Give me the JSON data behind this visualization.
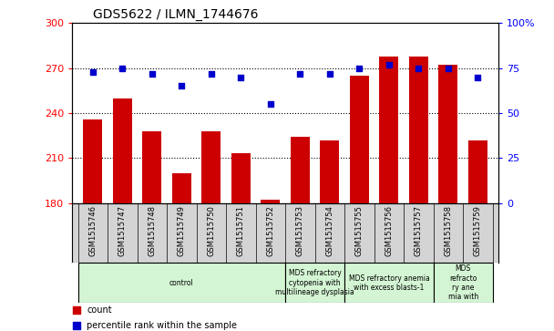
{
  "title": "GDS5622 / ILMN_1744676",
  "samples": [
    "GSM1515746",
    "GSM1515747",
    "GSM1515748",
    "GSM1515749",
    "GSM1515750",
    "GSM1515751",
    "GSM1515752",
    "GSM1515753",
    "GSM1515754",
    "GSM1515755",
    "GSM1515756",
    "GSM1515757",
    "GSM1515758",
    "GSM1515759"
  ],
  "counts": [
    236,
    250,
    228,
    200,
    228,
    213,
    182,
    224,
    222,
    265,
    278,
    278,
    272,
    222
  ],
  "percentiles": [
    73,
    75,
    72,
    65,
    72,
    70,
    55,
    72,
    72,
    75,
    77,
    75,
    75,
    70
  ],
  "ylim_left": [
    180,
    300
  ],
  "ylim_right": [
    0,
    100
  ],
  "yticks_left": [
    180,
    210,
    240,
    270,
    300
  ],
  "yticks_right": [
    0,
    25,
    50,
    75,
    100
  ],
  "bar_color": "#cc0000",
  "dot_color": "#0000cc",
  "bg_color": "#ffffff",
  "tick_area_bg": "#d4d4d4",
  "disease_groups": [
    {
      "label": "control",
      "start": 0,
      "end": 7,
      "color": "#d4f5d4"
    },
    {
      "label": "MDS refractory\ncytopenia with\nmultilineage dysplasia",
      "start": 7,
      "end": 9,
      "color": "#d4f5d4"
    },
    {
      "label": "MDS refractory anemia\nwith excess blasts-1",
      "start": 9,
      "end": 12,
      "color": "#d4f5d4"
    },
    {
      "label": "MDS\nrefracto\nry ane\nmia with",
      "start": 12,
      "end": 14,
      "color": "#d4f5d4"
    }
  ],
  "legend_items": [
    {
      "label": "count",
      "color": "#cc0000"
    },
    {
      "label": "percentile rank within the sample",
      "color": "#0000cc"
    }
  ]
}
